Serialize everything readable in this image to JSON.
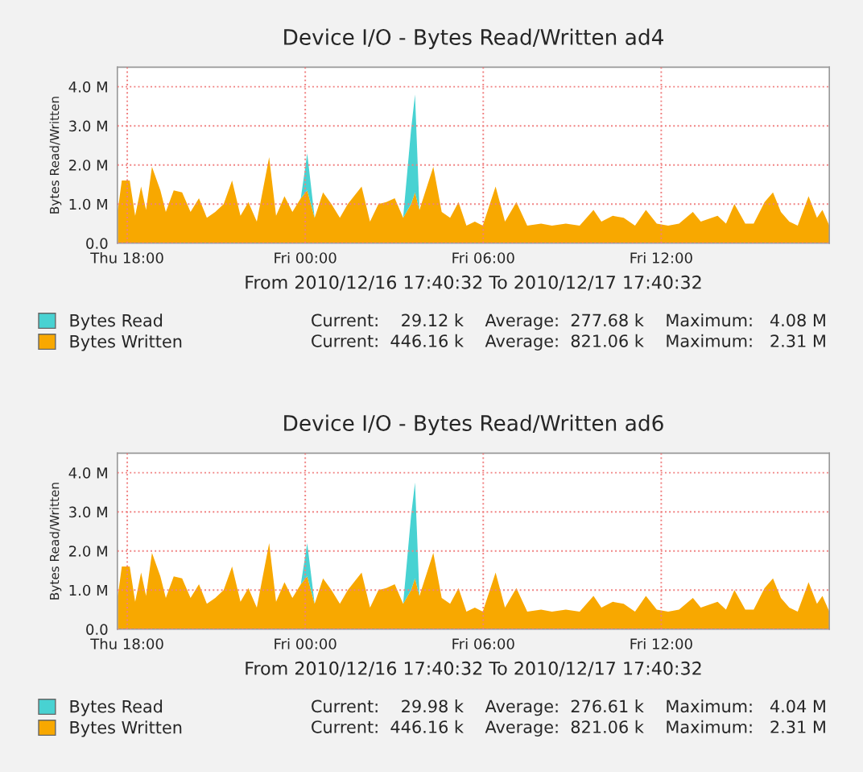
{
  "chart_data": [
    {
      "type": "area",
      "title": "Device I/O - Bytes Read/Written ad4",
      "xlabel": "From 2010/12/16 17:40:32 To 2010/12/17 17:40:32",
      "ylabel": "Bytes Read/Written",
      "x": [
        "2010-12-16T17:41",
        "2010-12-16T17:49",
        "2010-12-16T18:05",
        "2010-12-16T18:16",
        "2010-12-16T18:28",
        "2010-12-16T18:38",
        "2010-12-16T18:50",
        "2010-12-16T19:07",
        "2010-12-16T19:18",
        "2010-12-16T19:34",
        "2010-12-16T19:51",
        "2010-12-16T20:08",
        "2010-12-16T20:25",
        "2010-12-16T20:41",
        "2010-12-16T20:58",
        "2010-12-16T21:15",
        "2010-12-16T21:32",
        "2010-12-16T21:49",
        "2010-12-16T22:05",
        "2010-12-16T22:22",
        "2010-12-16T22:47",
        "2010-12-16T23:01",
        "2010-12-16T23:18",
        "2010-12-16T23:34",
        "2010-12-16T23:51",
        "2010-12-17T00:04",
        "2010-12-17T00:19",
        "2010-12-17T00:36",
        "2010-12-17T00:53",
        "2010-12-17T01:10",
        "2010-12-17T01:26",
        "2010-12-17T01:54",
        "2010-12-17T02:11",
        "2010-12-17T02:28",
        "2010-12-17T02:44",
        "2010-12-17T03:01",
        "2010-12-17T03:18",
        "2010-12-17T03:34",
        "2010-12-17T03:42",
        "2010-12-17T03:51",
        "2010-12-17T04:19",
        "2010-12-17T04:36",
        "2010-12-17T04:53",
        "2010-12-17T05:10",
        "2010-12-17T05:26",
        "2010-12-17T05:43",
        "2010-12-17T05:59",
        "2010-12-17T06:25",
        "2010-12-17T06:44",
        "2010-12-17T07:07",
        "2010-12-17T07:29",
        "2010-12-17T07:57",
        "2010-12-17T08:19",
        "2010-12-17T08:47",
        "2010-12-17T09:15",
        "2010-12-17T09:43",
        "2010-12-17T09:59",
        "2010-12-17T10:22",
        "2010-12-17T10:44",
        "2010-12-17T11:07",
        "2010-12-17T11:29",
        "2010-12-17T11:51",
        "2010-12-17T12:14",
        "2010-12-17T12:36",
        "2010-12-17T13:04",
        "2010-12-17T13:20",
        "2010-12-17T13:54",
        "2010-12-17T14:11",
        "2010-12-17T14:28",
        "2010-12-17T14:50",
        "2010-12-17T15:07",
        "2010-12-17T15:29",
        "2010-12-17T15:46",
        "2010-12-17T16:02",
        "2010-12-17T16:19",
        "2010-12-17T16:36",
        "2010-12-17T16:58",
        "2010-12-17T17:15",
        "2010-12-17T17:26",
        "2010-12-17T17:40"
      ],
      "series": [
        {
          "name": "Bytes Written",
          "color": "#f8a800",
          "values": [
            0.85,
            1.6,
            1.6,
            0.7,
            1.45,
            0.85,
            1.95,
            1.35,
            0.8,
            1.35,
            1.3,
            0.8,
            1.15,
            0.65,
            0.8,
            1.0,
            1.6,
            0.7,
            1.05,
            0.55,
            2.2,
            0.7,
            1.2,
            0.8,
            1.15,
            1.35,
            0.65,
            1.3,
            1.0,
            0.65,
            1.0,
            1.45,
            0.55,
            1.0,
            1.05,
            1.15,
            0.65,
            1.0,
            1.3,
            0.85,
            1.95,
            0.8,
            0.65,
            1.05,
            0.45,
            0.55,
            0.45,
            1.45,
            0.55,
            1.05,
            0.45,
            0.5,
            0.45,
            0.5,
            0.45,
            0.85,
            0.55,
            0.7,
            0.65,
            0.45,
            0.85,
            0.5,
            0.45,
            0.5,
            0.8,
            0.55,
            0.7,
            0.5,
            1.0,
            0.5,
            0.5,
            1.05,
            1.3,
            0.8,
            0.55,
            0.45,
            1.2,
            0.65,
            0.85,
            0.45
          ]
        },
        {
          "name": "Bytes Read",
          "color": "#48d2d2",
          "values": [
            0,
            0,
            0,
            0,
            0,
            0,
            0,
            0,
            0,
            0,
            0,
            0,
            0,
            0,
            0,
            0,
            0,
            0,
            0,
            0,
            0,
            0,
            0,
            0,
            0,
            0.95,
            0,
            0,
            0,
            0,
            0,
            0,
            0,
            0,
            0,
            0,
            0,
            1.9,
            2.5,
            0,
            0,
            0,
            0,
            0,
            0,
            0,
            0,
            0,
            0,
            0,
            0,
            0,
            0,
            0,
            0,
            0,
            0,
            0,
            0,
            0,
            0,
            0,
            0,
            0,
            0,
            0,
            0,
            0,
            0,
            0,
            0,
            0,
            0,
            0,
            0,
            0,
            0,
            0,
            0,
            0
          ]
        }
      ],
      "stacked": true,
      "xlim": [
        "2010-12-16T17:40",
        "2010-12-17T17:40"
      ],
      "ylim": [
        0,
        4.5
      ],
      "xticks": [
        {
          "value": "2010-12-16T18:00",
          "label": "Thu 18:00"
        },
        {
          "value": "2010-12-17T00:00",
          "label": "Fri 00:00"
        },
        {
          "value": "2010-12-17T06:00",
          "label": "Fri 06:00"
        },
        {
          "value": "2010-12-17T12:00",
          "label": "Fri 12:00"
        }
      ],
      "yticks": [
        {
          "value": 0,
          "label": "0.0"
        },
        {
          "value": 1,
          "label": "1.0 M"
        },
        {
          "value": 2,
          "label": "2.0 M"
        },
        {
          "value": 3,
          "label": "3.0 M"
        },
        {
          "value": 4,
          "label": "4.0 M"
        }
      ],
      "grid": true,
      "legend": "bottom",
      "annotations": [
        "Current:    29.12 k    Average:  277.68 k    Maximum:   4.08 M",
        "Current:  446.16 k    Average:  821.06 k    Maximum:   2.31 M"
      ]
    },
    {
      "type": "area",
      "title": "Device I/O - Bytes Read/Written ad6",
      "xlabel": "From 2010/12/16 17:40:32 To 2010/12/17 17:40:32",
      "ylabel": "Bytes Read/Written",
      "x": [
        "2010-12-16T17:41",
        "2010-12-16T17:49",
        "2010-12-16T18:05",
        "2010-12-16T18:16",
        "2010-12-16T18:28",
        "2010-12-16T18:38",
        "2010-12-16T18:50",
        "2010-12-16T19:07",
        "2010-12-16T19:18",
        "2010-12-16T19:34",
        "2010-12-16T19:51",
        "2010-12-16T20:08",
        "2010-12-16T20:25",
        "2010-12-16T20:41",
        "2010-12-16T20:58",
        "2010-12-16T21:15",
        "2010-12-16T21:32",
        "2010-12-16T21:49",
        "2010-12-16T22:05",
        "2010-12-16T22:22",
        "2010-12-16T22:47",
        "2010-12-16T23:01",
        "2010-12-16T23:18",
        "2010-12-16T23:34",
        "2010-12-16T23:51",
        "2010-12-17T00:04",
        "2010-12-17T00:19",
        "2010-12-17T00:36",
        "2010-12-17T00:53",
        "2010-12-17T01:10",
        "2010-12-17T01:26",
        "2010-12-17T01:54",
        "2010-12-17T02:11",
        "2010-12-17T02:28",
        "2010-12-17T02:44",
        "2010-12-17T03:01",
        "2010-12-17T03:18",
        "2010-12-17T03:34",
        "2010-12-17T03:42",
        "2010-12-17T03:51",
        "2010-12-17T04:19",
        "2010-12-17T04:36",
        "2010-12-17T04:53",
        "2010-12-17T05:10",
        "2010-12-17T05:26",
        "2010-12-17T05:43",
        "2010-12-17T05:59",
        "2010-12-17T06:25",
        "2010-12-17T06:44",
        "2010-12-17T07:07",
        "2010-12-17T07:29",
        "2010-12-17T07:57",
        "2010-12-17T08:19",
        "2010-12-17T08:47",
        "2010-12-17T09:15",
        "2010-12-17T09:43",
        "2010-12-17T09:59",
        "2010-12-17T10:22",
        "2010-12-17T10:44",
        "2010-12-17T11:07",
        "2010-12-17T11:29",
        "2010-12-17T11:51",
        "2010-12-17T12:14",
        "2010-12-17T12:36",
        "2010-12-17T13:04",
        "2010-12-17T13:20",
        "2010-12-17T13:54",
        "2010-12-17T14:11",
        "2010-12-17T14:28",
        "2010-12-17T14:50",
        "2010-12-17T15:07",
        "2010-12-17T15:29",
        "2010-12-17T15:46",
        "2010-12-17T16:02",
        "2010-12-17T16:19",
        "2010-12-17T16:36",
        "2010-12-17T16:58",
        "2010-12-17T17:15",
        "2010-12-17T17:26",
        "2010-12-17T17:40"
      ],
      "series": [
        {
          "name": "Bytes Written",
          "color": "#f8a800",
          "values": [
            0.85,
            1.6,
            1.6,
            0.7,
            1.45,
            0.85,
            1.95,
            1.35,
            0.8,
            1.35,
            1.3,
            0.8,
            1.15,
            0.65,
            0.8,
            1.0,
            1.6,
            0.7,
            1.05,
            0.55,
            2.2,
            0.7,
            1.2,
            0.8,
            1.15,
            1.35,
            0.65,
            1.3,
            1.0,
            0.65,
            1.0,
            1.45,
            0.55,
            1.0,
            1.05,
            1.15,
            0.65,
            1.0,
            1.3,
            0.85,
            1.95,
            0.8,
            0.65,
            1.05,
            0.45,
            0.55,
            0.45,
            1.45,
            0.55,
            1.05,
            0.45,
            0.5,
            0.45,
            0.5,
            0.45,
            0.85,
            0.55,
            0.7,
            0.65,
            0.45,
            0.85,
            0.5,
            0.45,
            0.5,
            0.8,
            0.55,
            0.7,
            0.5,
            1.0,
            0.5,
            0.5,
            1.05,
            1.3,
            0.8,
            0.55,
            0.45,
            1.2,
            0.65,
            0.85,
            0.45
          ]
        },
        {
          "name": "Bytes Read",
          "color": "#48d2d2",
          "values": [
            0,
            0,
            0,
            0,
            0,
            0,
            0,
            0,
            0,
            0,
            0,
            0,
            0,
            0,
            0,
            0,
            0,
            0,
            0,
            0,
            0,
            0,
            0,
            0,
            0,
            0.85,
            0,
            0,
            0,
            0,
            0,
            0,
            0,
            0,
            0,
            0,
            0,
            1.9,
            2.45,
            0,
            0,
            0,
            0,
            0,
            0,
            0,
            0,
            0,
            0,
            0,
            0,
            0,
            0,
            0,
            0,
            0,
            0,
            0,
            0,
            0,
            0,
            0,
            0,
            0,
            0,
            0,
            0,
            0,
            0,
            0,
            0,
            0,
            0,
            0,
            0,
            0,
            0,
            0,
            0,
            0
          ]
        }
      ],
      "stacked": true,
      "xlim": [
        "2010-12-16T17:40",
        "2010-12-17T17:40"
      ],
      "ylim": [
        0,
        4.5
      ],
      "xticks": [
        {
          "value": "2010-12-16T18:00",
          "label": "Thu 18:00"
        },
        {
          "value": "2010-12-17T00:00",
          "label": "Fri 00:00"
        },
        {
          "value": "2010-12-17T06:00",
          "label": "Fri 06:00"
        },
        {
          "value": "2010-12-17T12:00",
          "label": "Fri 12:00"
        }
      ],
      "yticks": [
        {
          "value": 0,
          "label": "0.0"
        },
        {
          "value": 1,
          "label": "1.0 M"
        },
        {
          "value": 2,
          "label": "2.0 M"
        },
        {
          "value": 3,
          "label": "3.0 M"
        },
        {
          "value": 4,
          "label": "4.0 M"
        }
      ],
      "grid": true,
      "legend": "bottom",
      "annotations": [
        "Current:    29.98 k    Average:  276.61 k    Maximum:   4.04 M",
        "Current:  446.16 k    Average:  821.06 k    Maximum:   2.31 M"
      ]
    }
  ]
}
